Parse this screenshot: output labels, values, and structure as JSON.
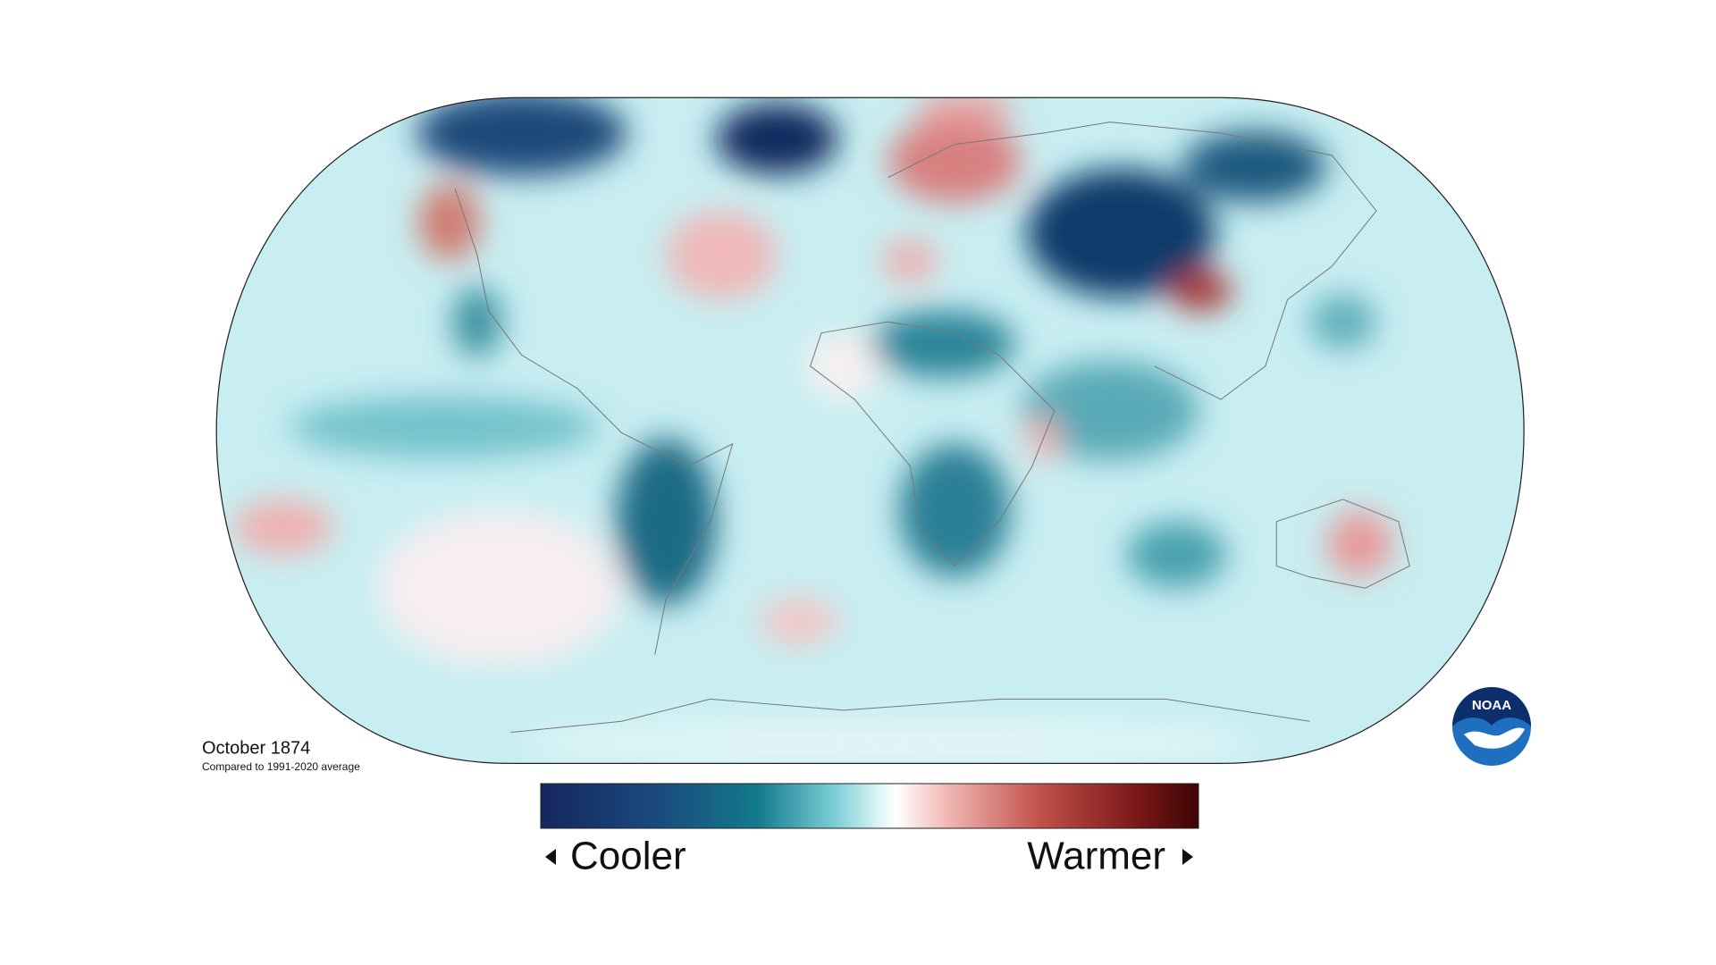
{
  "title": "October 1874",
  "subtitle": "Compared to 1991-2020 average",
  "legend": {
    "low": "Cooler",
    "high": "Warmer"
  },
  "logo": "NOAA"
}
